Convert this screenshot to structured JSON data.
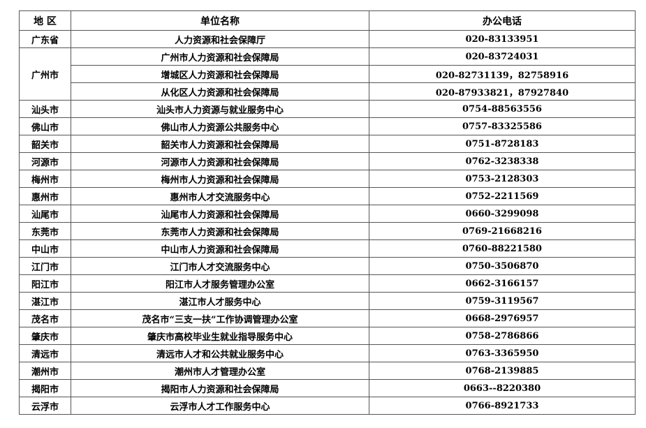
{
  "headers": {
    "region": "地 区",
    "unit": "单位名称",
    "phone": "办公电话"
  },
  "rows": [
    {
      "region": "广东省",
      "unit": "人力资源和社会保障厅",
      "phone": "020-83133951"
    },
    {
      "region": "广州市",
      "unit": "广州市人力资源和社会保障局",
      "phone": "020-83724031"
    },
    {
      "region": "",
      "unit": "增城区人力资源和社会保障局",
      "phone": "020-82731139，82758916"
    },
    {
      "region": "",
      "unit": "从化区人力资源和社会保障局",
      "phone": "020-87933821，87927840"
    },
    {
      "region": "汕头市",
      "unit": "汕头市人力资源与就业服务中心",
      "phone": "0754-88563556"
    },
    {
      "region": "佛山市",
      "unit": "佛山市人力资源公共服务中心",
      "phone": "0757-83325586"
    },
    {
      "region": "韶关市",
      "unit": "韶关市人力资源和社会保障局",
      "phone": "0751-8728183"
    },
    {
      "region": "河源市",
      "unit": "河源市人力资源和社会保障局",
      "phone": "0762-3238338"
    },
    {
      "region": "梅州市",
      "unit": "梅州市人力资源和社会保障局",
      "phone": "0753-2128303"
    },
    {
      "region": "惠州市",
      "unit": "惠州市人才交流服务中心",
      "phone": "0752-2211569"
    },
    {
      "region": "汕尾市",
      "unit": "汕尾市人力资源和社会保障局",
      "phone": "0660-3299098"
    },
    {
      "region": "东莞市",
      "unit": "东莞市人力资源和社会保障局",
      "phone": "0769-21668216"
    },
    {
      "region": "中山市",
      "unit": "中山市人力资源和社会保障局",
      "phone": "0760-88221580"
    },
    {
      "region": "江门市",
      "unit": "江门市人才交流服务中心",
      "phone": "0750-3506870"
    },
    {
      "region": "阳江市",
      "unit": "阳江市人才服务管理办公室",
      "phone": "0662-3166157"
    },
    {
      "region": "湛江市",
      "unit": "湛江市人才服务中心",
      "phone": "0759-3119567"
    },
    {
      "region": "茂名市",
      "unit": "茂名市“三支一扶”工作协调管理办公室",
      "phone": "0668-2976957"
    },
    {
      "region": "肇庆市",
      "unit": "肇庆市高校毕业生就业指导服务中心",
      "phone": "0758-2786866"
    },
    {
      "region": "清远市",
      "unit": "清远市人才和公共就业服务中心",
      "phone": "0763-3365950"
    },
    {
      "region": "潮州市",
      "unit": "潮州市人才管理办公室",
      "phone": "0768-2139885"
    },
    {
      "region": "揭阳市",
      "unit": "揭阳市人力资源和社会保障局",
      "phone": "0663--8220380"
    },
    {
      "region": "云浮市",
      "unit": "云浮市人才工作服务中心",
      "phone": "0766-8921733"
    }
  ]
}
